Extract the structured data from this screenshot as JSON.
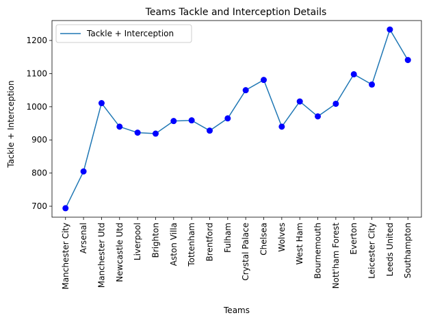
{
  "chart_data": {
    "type": "line",
    "title": "Teams Tackle and Interception Details",
    "xlabel": "Teams",
    "ylabel": "Tackle + Interception",
    "categories": [
      "Manchester City",
      "Arsenal",
      "Manchester Utd",
      "Newcastle Utd",
      "Liverpool",
      "Brighton",
      "Aston Villa",
      "Tottenham",
      "Brentford",
      "Fulham",
      "Crystal Palace",
      "Chelsea",
      "Wolves",
      "West Ham",
      "Bournemouth",
      "Nott'ham Forest",
      "Everton",
      "Leicester City",
      "Leeds United",
      "Southampton"
    ],
    "series": [
      {
        "name": "Tackle + Interception",
        "values": [
          694,
          805,
          1011,
          940,
          922,
          919,
          957,
          959,
          928,
          965,
          1050,
          1081,
          940,
          1016,
          971,
          1009,
          1098,
          1067,
          1233,
          1141
        ],
        "line_color": "#1f77b4",
        "marker_color": "#0000ff"
      }
    ],
    "ylim": [
      667,
      1260
    ],
    "yticks": [
      700,
      800,
      900,
      1000,
      1100,
      1200
    ],
    "grid": false,
    "legend_position": "top-left"
  }
}
